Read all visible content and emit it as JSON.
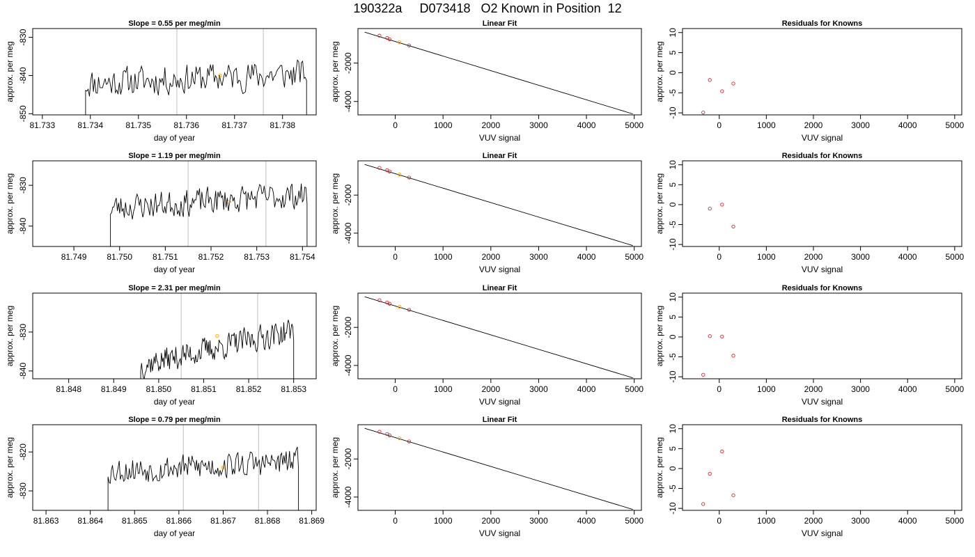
{
  "page": {
    "title": "190322a     D073418   O2 Known in Position  12"
  },
  "chart_data": [
    {
      "type": "line",
      "row": 0,
      "title": "Slope =  0.55  per meg/min",
      "xlabel": "day of year",
      "ylabel": "approx. per meg",
      "xlim": [
        81.7328,
        81.7387
      ],
      "ylim": [
        -850.3,
        -827.7
      ],
      "xticks": [
        81.733,
        81.734,
        81.735,
        81.736,
        81.737,
        81.738
      ],
      "xtick_labels": [
        "81.733",
        "81.734",
        "81.735",
        "81.736",
        "81.737",
        "81.738"
      ],
      "yticks": [
        -850,
        -840,
        -830
      ],
      "ytick_labels": [
        "-850",
        "-840",
        "-830"
      ],
      "vlines": [
        81.7358,
        81.7376
      ],
      "trace": {
        "x_start": 81.7339,
        "x_end": 81.7385,
        "base": -842,
        "drift": 2.5,
        "amplitude": 2.6,
        "seed": 11
      },
      "known_point": {
        "x": 81.7367,
        "y": -840
      }
    },
    {
      "type": "scatter",
      "row": 0,
      "title": "Linear Fit",
      "xlabel": "VUV signal",
      "ylabel": "approx. per meg",
      "xlim": [
        -780,
        5150
      ],
      "ylim": [
        -4700,
        -200
      ],
      "xticks": [
        0,
        1000,
        2000,
        3000,
        4000,
        5000
      ],
      "xtick_labels": [
        "0",
        "1000",
        "2000",
        "3000",
        "4000",
        "5000"
      ],
      "yticks": [
        -4000,
        -2000
      ],
      "ytick_labels": [
        "-4000",
        "-2000"
      ],
      "fit_line": {
        "x": [
          -640,
          4970
        ],
        "y": [
          -390,
          -4650
        ]
      },
      "points": {
        "x": [
          -330,
          -170,
          -120,
          290
        ],
        "y": [
          -570,
          -690,
          -760,
          -1080
        ]
      },
      "known_point": {
        "x": 90,
        "y": -920
      }
    },
    {
      "type": "scatter",
      "row": 0,
      "title": "Residuals for Knowns",
      "xlabel": "VUV signal",
      "ylabel": "approx. per meg",
      "xlim": [
        -780,
        5150
      ],
      "ylim": [
        -10.5,
        11
      ],
      "xticks": [
        0,
        1000,
        2000,
        3000,
        4000,
        5000
      ],
      "xtick_labels": [
        "0",
        "1000",
        "2000",
        "3000",
        "4000",
        "5000"
      ],
      "yticks": [
        -10,
        -5,
        0,
        5,
        10
      ],
      "ytick_labels": [
        "-10",
        "-5",
        "0",
        "5",
        "10"
      ],
      "points": {
        "x": [
          -340,
          -200,
          60,
          300
        ],
        "y": [
          -9.9,
          -1.8,
          -4.6,
          -2.7
        ]
      }
    },
    {
      "type": "line",
      "row": 1,
      "title": "Slope =  1.19  per meg/min",
      "xlabel": "day of year",
      "ylabel": "approx. per meg",
      "xlim": [
        81.7481,
        81.7543
      ],
      "ylim": [
        -845,
        -824
      ],
      "xticks": [
        81.749,
        81.75,
        81.751,
        81.752,
        81.753,
        81.754
      ],
      "xtick_labels": [
        "81.749",
        "81.750",
        "81.751",
        "81.752",
        "81.753",
        "81.754"
      ],
      "yticks": [
        -840,
        -830
      ],
      "ytick_labels": [
        "-840",
        "-830"
      ],
      "vlines": [
        81.7515,
        81.7532
      ],
      "trace": {
        "x_start": 81.7498,
        "x_end": 81.7541,
        "base": -835.5,
        "drift": 3.2,
        "amplitude": 2.2,
        "seed": 23
      },
      "known_point": {
        "x": 81.7524,
        "y": -834
      }
    },
    {
      "type": "scatter",
      "row": 1,
      "title": "Linear Fit",
      "xlabel": "VUV signal",
      "ylabel": "approx. per meg",
      "xlim": [
        -780,
        5150
      ],
      "ylim": [
        -4700,
        -200
      ],
      "xticks": [
        0,
        1000,
        2000,
        3000,
        4000,
        5000
      ],
      "xtick_labels": [
        "0",
        "1000",
        "2000",
        "3000",
        "4000",
        "5000"
      ],
      "yticks": [
        -4000,
        -2000
      ],
      "ytick_labels": [
        "-4000",
        "-2000"
      ],
      "fit_line": {
        "x": [
          -640,
          4970
        ],
        "y": [
          -390,
          -4650
        ]
      },
      "points": {
        "x": [
          -330,
          -170,
          -120,
          290
        ],
        "y": [
          -570,
          -690,
          -760,
          -1080
        ]
      },
      "known_point": {
        "x": 90,
        "y": -920
      }
    },
    {
      "type": "scatter",
      "row": 1,
      "title": "Residuals for Knowns",
      "xlabel": "VUV signal",
      "ylabel": "approx. per meg",
      "xlim": [
        -780,
        5150
      ],
      "ylim": [
        -10.5,
        11
      ],
      "xticks": [
        0,
        1000,
        2000,
        3000,
        4000,
        5000
      ],
      "xtick_labels": [
        "0",
        "1000",
        "2000",
        "3000",
        "4000",
        "5000"
      ],
      "yticks": [
        -10,
        -5,
        0,
        5,
        10
      ],
      "ytick_labels": [
        "-10",
        "-5",
        "0",
        "5",
        "10"
      ],
      "points": {
        "x": [
          -200,
          60,
          300
        ],
        "y": [
          -1.0,
          0.0,
          -5.5
        ]
      }
    },
    {
      "type": "line",
      "row": 2,
      "title": "Slope =  2.31  per meg/min",
      "xlabel": "day of year",
      "ylabel": "approx. per meg",
      "xlim": [
        81.8472,
        81.8535
      ],
      "ylim": [
        -842,
        -820
      ],
      "xticks": [
        81.848,
        81.849,
        81.85,
        81.851,
        81.852,
        81.853
      ],
      "xtick_labels": [
        "81.848",
        "81.849",
        "81.850",
        "81.851",
        "81.852",
        "81.853"
      ],
      "yticks": [
        -840,
        -830
      ],
      "ytick_labels": [
        "-840",
        "-830"
      ],
      "vlines": [
        81.8505,
        81.8522
      ],
      "trace": {
        "x_start": 81.8496,
        "x_end": 81.853,
        "base": -838.5,
        "drift": 9.0,
        "amplitude": 2.2,
        "seed": 37
      },
      "known_point": {
        "x": 81.8513,
        "y": -831
      }
    },
    {
      "type": "scatter",
      "row": 2,
      "title": "Linear Fit",
      "xlabel": "VUV signal",
      "ylabel": "approx. per meg",
      "xlim": [
        -780,
        5150
      ],
      "ylim": [
        -4700,
        -200
      ],
      "xticks": [
        0,
        1000,
        2000,
        3000,
        4000,
        5000
      ],
      "xtick_labels": [
        "0",
        "1000",
        "2000",
        "3000",
        "4000",
        "5000"
      ],
      "yticks": [
        -4000,
        -2000
      ],
      "ytick_labels": [
        "-4000",
        "-2000"
      ],
      "fit_line": {
        "x": [
          -640,
          4970
        ],
        "y": [
          -390,
          -4650
        ]
      },
      "points": {
        "x": [
          -330,
          -170,
          -120,
          290
        ],
        "y": [
          -570,
          -690,
          -760,
          -1080
        ]
      },
      "known_point": {
        "x": 90,
        "y": -920
      }
    },
    {
      "type": "scatter",
      "row": 2,
      "title": "Residuals for Knowns",
      "xlabel": "VUV signal",
      "ylabel": "approx. per meg",
      "xlim": [
        -780,
        5150
      ],
      "ylim": [
        -10.5,
        11
      ],
      "xticks": [
        0,
        1000,
        2000,
        3000,
        4000,
        5000
      ],
      "xtick_labels": [
        "0",
        "1000",
        "2000",
        "3000",
        "4000",
        "5000"
      ],
      "yticks": [
        -10,
        -5,
        0,
        5,
        10
      ],
      "ytick_labels": [
        "-10",
        "-5",
        "0",
        "5",
        "10"
      ],
      "points": {
        "x": [
          -340,
          -200,
          60,
          300
        ],
        "y": [
          -9.5,
          0.2,
          0.1,
          -4.7
        ]
      }
    },
    {
      "type": "line",
      "row": 3,
      "title": "Slope =  0.79  per meg/min",
      "xlabel": "day of year",
      "ylabel": "approx. per meg",
      "xlim": [
        81.8627,
        81.8691
      ],
      "ylim": [
        -835,
        -813
      ],
      "xticks": [
        81.863,
        81.864,
        81.865,
        81.866,
        81.867,
        81.868,
        81.869
      ],
      "xtick_labels": [
        "81.863",
        "81.864",
        "81.865",
        "81.866",
        "81.867",
        "81.868",
        "81.869"
      ],
      "yticks": [
        -830,
        -820
      ],
      "ytick_labels": [
        "-830",
        "-820"
      ],
      "vlines": [
        81.8661,
        81.8678
      ],
      "trace": {
        "x_start": 81.8644,
        "x_end": 81.8687,
        "base": -824.8,
        "drift": 2.2,
        "amplitude": 2.3,
        "seed": 53
      },
      "known_point": {
        "x": 81.867,
        "y": -824
      }
    },
    {
      "type": "scatter",
      "row": 3,
      "title": "Linear Fit",
      "xlabel": "VUV signal",
      "ylabel": "approx. per meg",
      "xlim": [
        -780,
        5150
      ],
      "ylim": [
        -4700,
        -200
      ],
      "xticks": [
        0,
        1000,
        2000,
        3000,
        4000,
        5000
      ],
      "xtick_labels": [
        "0",
        "1000",
        "2000",
        "3000",
        "4000",
        "5000"
      ],
      "yticks": [
        -4000,
        -2000
      ],
      "ytick_labels": [
        "-4000",
        "-2000"
      ],
      "fit_line": {
        "x": [
          -640,
          4970
        ],
        "y": [
          -390,
          -4650
        ]
      },
      "points": {
        "x": [
          -330,
          -170,
          -120,
          290
        ],
        "y": [
          -570,
          -690,
          -760,
          -1080
        ]
      },
      "known_point": {
        "x": 90,
        "y": -920
      }
    },
    {
      "type": "scatter",
      "row": 3,
      "title": "Residuals for Knowns",
      "xlabel": "VUV signal",
      "ylabel": "approx. per meg",
      "xlim": [
        -780,
        5150
      ],
      "ylim": [
        -10.5,
        11
      ],
      "xticks": [
        0,
        1000,
        2000,
        3000,
        4000,
        5000
      ],
      "xtick_labels": [
        "0",
        "1000",
        "2000",
        "3000",
        "4000",
        "5000"
      ],
      "yticks": [
        -10,
        -5,
        0,
        5,
        10
      ],
      "ytick_labels": [
        "-10",
        "-5",
        "0",
        "5",
        "10"
      ],
      "points": {
        "x": [
          -340,
          -200,
          60,
          300
        ],
        "y": [
          -8.9,
          -1.3,
          4.3,
          -6.7
        ]
      }
    }
  ],
  "colors": {
    "axes": "#000000",
    "trace": "#000000",
    "vline": "#c8c8c8",
    "known_point": "#ffa500",
    "data_point": "#d62728"
  }
}
